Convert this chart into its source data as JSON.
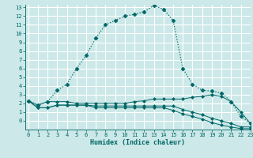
{
  "xlabel": "Humidex (Indice chaleur)",
  "ylabel": "",
  "bg_color": "#cce8e8",
  "line_color": "#006666",
  "grid_color": "#ffffff",
  "xmin": 0,
  "xmax": 23,
  "ymin": -1,
  "ymax": 13,
  "x_ticks": [
    0,
    1,
    2,
    3,
    4,
    5,
    6,
    7,
    8,
    9,
    10,
    11,
    12,
    13,
    14,
    15,
    16,
    17,
    18,
    19,
    20,
    21,
    22,
    23
  ],
  "y_ticks": [
    0,
    1,
    2,
    3,
    4,
    5,
    6,
    7,
    8,
    9,
    10,
    11,
    12,
    13
  ],
  "series": [
    {
      "x": [
        0,
        1,
        2,
        3,
        4,
        5,
        6,
        7,
        8,
        9,
        10,
        11,
        12,
        13,
        14,
        15,
        16,
        17,
        18,
        19,
        20,
        21,
        22,
        23
      ],
      "y": [
        2.3,
        1.8,
        2.2,
        3.5,
        4.2,
        6.0,
        7.5,
        9.5,
        11.0,
        11.5,
        12.0,
        12.2,
        12.5,
        13.2,
        12.8,
        11.5,
        6.0,
        4.2,
        3.5,
        3.4,
        3.2,
        2.2,
        0.5,
        -0.3
      ],
      "style": "dotted"
    },
    {
      "x": [
        0,
        1,
        2,
        3,
        4,
        5,
        6,
        7,
        8,
        9,
        10,
        11,
        12,
        13,
        14,
        15,
        16,
        17,
        18,
        19,
        20,
        21,
        22,
        23
      ],
      "y": [
        2.3,
        1.8,
        2.2,
        2.2,
        2.2,
        2.0,
        2.0,
        2.0,
        2.0,
        2.0,
        2.0,
        2.2,
        2.3,
        2.5,
        2.5,
        2.5,
        2.5,
        2.7,
        2.8,
        3.0,
        2.8,
        2.2,
        1.0,
        -0.3
      ],
      "style": "solid"
    },
    {
      "x": [
        0,
        1,
        2,
        3,
        4,
        5,
        6,
        7,
        8,
        9,
        10,
        11,
        12,
        13,
        14,
        15,
        16,
        17,
        18,
        19,
        20,
        21,
        22,
        23
      ],
      "y": [
        2.3,
        1.5,
        1.5,
        1.8,
        1.8,
        1.8,
        1.8,
        1.7,
        1.7,
        1.7,
        1.7,
        1.7,
        1.7,
        1.7,
        1.7,
        1.7,
        1.3,
        1.0,
        0.7,
        0.3,
        0.0,
        -0.3,
        -0.7,
        -0.7
      ],
      "style": "solid"
    },
    {
      "x": [
        0,
        1,
        2,
        3,
        4,
        5,
        6,
        7,
        8,
        9,
        10,
        11,
        12,
        13,
        14,
        15,
        16,
        17,
        18,
        19,
        20,
        21,
        22,
        23
      ],
      "y": [
        2.3,
        1.5,
        1.5,
        1.8,
        1.8,
        1.8,
        1.8,
        1.5,
        1.5,
        1.5,
        1.5,
        1.5,
        1.5,
        1.5,
        1.5,
        1.2,
        0.8,
        0.5,
        0.2,
        -0.2,
        -0.5,
        -0.7,
        -0.9,
        -0.9
      ],
      "style": "solid"
    }
  ]
}
